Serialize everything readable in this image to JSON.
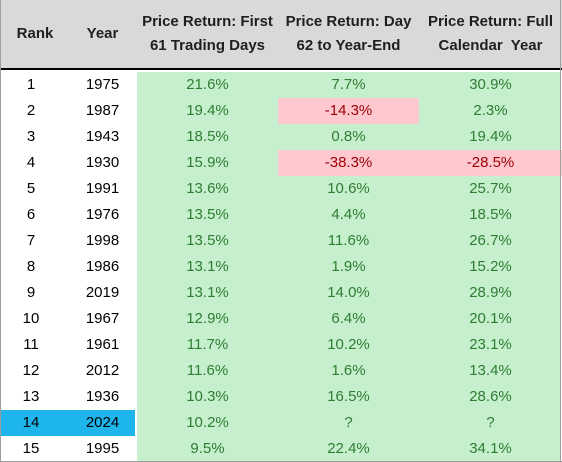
{
  "colors": {
    "header_bg": "#d9d9d9",
    "positive_bg": "#c6efce",
    "positive_text": "#2e7d32",
    "negative_bg": "#ffc7ce",
    "negative_text": "#9c0006",
    "highlight_bg": "#1eb4ec"
  },
  "headers": {
    "rank": "Rank",
    "year": "Year",
    "r1_line1": "Price Return: First",
    "r1_line2": "61 Trading Days",
    "r2_line1": "Price Return: Day",
    "r2_line2": "62 to Year-End",
    "r3_line1": "Price Return: Full",
    "r3_line2": "Calendar  Year"
  },
  "chart_data": {
    "type": "table",
    "columns": [
      "Rank",
      "Year",
      "Price Return: First 61 Trading Days",
      "Price Return: Day 62 to Year-End",
      "Price Return: Full Calendar  Year"
    ],
    "rows": [
      {
        "rank": "1",
        "year": "1975",
        "first61": "21.6%",
        "rest": "7.7%",
        "full": "30.9%"
      },
      {
        "rank": "2",
        "year": "1987",
        "first61": "19.4%",
        "rest": "-14.3%",
        "full": "2.3%"
      },
      {
        "rank": "3",
        "year": "1943",
        "first61": "18.5%",
        "rest": "0.8%",
        "full": "19.4%"
      },
      {
        "rank": "4",
        "year": "1930",
        "first61": "15.9%",
        "rest": "-38.3%",
        "full": "-28.5%"
      },
      {
        "rank": "5",
        "year": "1991",
        "first61": "13.6%",
        "rest": "10.6%",
        "full": "25.7%"
      },
      {
        "rank": "6",
        "year": "1976",
        "first61": "13.5%",
        "rest": "4.4%",
        "full": "18.5%"
      },
      {
        "rank": "7",
        "year": "1998",
        "first61": "13.5%",
        "rest": "11.6%",
        "full": "26.7%"
      },
      {
        "rank": "8",
        "year": "1986",
        "first61": "13.1%",
        "rest": "1.9%",
        "full": "15.2%"
      },
      {
        "rank": "9",
        "year": "2019",
        "first61": "13.1%",
        "rest": "14.0%",
        "full": "28.9%"
      },
      {
        "rank": "10",
        "year": "1967",
        "first61": "12.9%",
        "rest": "6.4%",
        "full": "20.1%"
      },
      {
        "rank": "11",
        "year": "1961",
        "first61": "11.7%",
        "rest": "10.2%",
        "full": "23.1%"
      },
      {
        "rank": "12",
        "year": "2012",
        "first61": "11.6%",
        "rest": "1.6%",
        "full": "13.4%"
      },
      {
        "rank": "13",
        "year": "1936",
        "first61": "10.3%",
        "rest": "16.5%",
        "full": "28.6%"
      },
      {
        "rank": "14",
        "year": "2024",
        "first61": "10.2%",
        "rest": "?",
        "full": "?",
        "highlight": true
      },
      {
        "rank": "15",
        "year": "1995",
        "first61": "9.5%",
        "rest": "22.4%",
        "full": "34.1%"
      }
    ]
  }
}
